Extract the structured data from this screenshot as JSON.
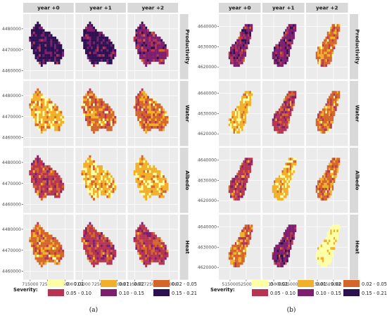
{
  "chart_data": [
    {
      "type": "heatmap",
      "panel_label": "(a)",
      "columns": [
        "year +0",
        "year +1",
        "year +2"
      ],
      "rows": [
        "Productivity",
        "Water",
        "Albedo",
        "Heat"
      ],
      "x_ticks": [
        "715000",
        "725000",
        "735000"
      ],
      "y_ticks": [
        "4460000",
        "4470000",
        "4480000"
      ],
      "xlim": [
        711000,
        740000
      ],
      "ylim": [
        4456000,
        4487000
      ],
      "dominant_class": [
        [
          5,
          5,
          4
        ],
        [
          1,
          2,
          2
        ],
        [
          3,
          1,
          1
        ],
        [
          2,
          3,
          3
        ]
      ],
      "legend": {
        "title": "Severity:",
        "classes": [
          "0 - 0.01",
          "0.01 - 0.02",
          "0.02 - 0.05",
          "0.05 - 0.10",
          "0.10 - 0.15",
          "0.15 - 0.21"
        ]
      }
    },
    {
      "type": "heatmap",
      "panel_label": "(b)",
      "columns": [
        "year +0",
        "year +1",
        "year +2"
      ],
      "rows": [
        "Productivity",
        "Water",
        "Albedo",
        "Heat"
      ],
      "x_ticks": [
        "515000",
        "525000"
      ],
      "y_ticks": [
        "4620000",
        "4630000",
        "4640000"
      ],
      "xlim": [
        508000,
        534000
      ],
      "ylim": [
        4614000,
        4646000
      ],
      "dominant_class": [
        [
          4,
          4,
          2
        ],
        [
          1,
          3,
          2
        ],
        [
          3,
          1,
          2
        ],
        [
          2,
          4,
          0
        ]
      ],
      "legend": {
        "title": "Severity:",
        "classes": [
          "0 - 0.01",
          "0.01 - 0.02",
          "0.02 - 0.05",
          "0.05 - 0.10",
          "0.10 - 0.15",
          "0.15 - 0.21"
        ]
      }
    }
  ],
  "colors": {
    "classes": [
      "#FFFFA6",
      "#F2B02A",
      "#D4662C",
      "#B63553",
      "#7E1E6E",
      "#2C1151"
    ],
    "panel_bg": "#EBEBEB",
    "strip_bg": "#D9D9D9",
    "grid": "#FFFFFF"
  }
}
